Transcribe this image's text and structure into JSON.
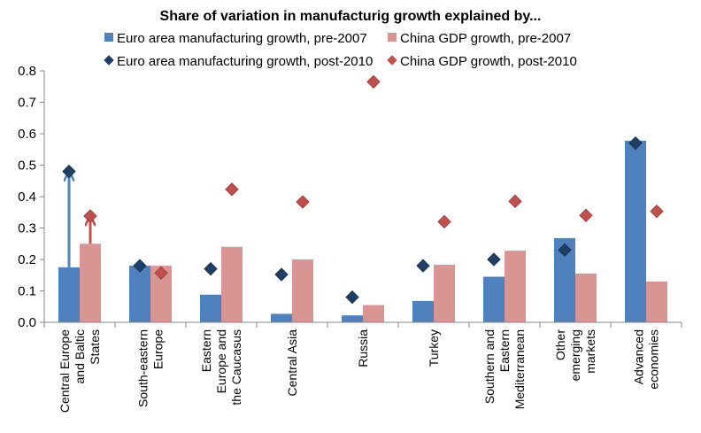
{
  "chart_data": {
    "type": "bar",
    "title": "Share of variation in manufacturig growth explained by...",
    "xlabel": "",
    "ylabel": "",
    "ylim": [
      0,
      0.8
    ],
    "yticks": [
      "0.0",
      "0.1",
      "0.2",
      "0.3",
      "0.4",
      "0.5",
      "0.6",
      "0.7",
      "0.8"
    ],
    "grid": false,
    "legend_position": "top",
    "categories": [
      [
        "Central Europe",
        "and Baltic",
        "States"
      ],
      [
        "South-eastern",
        "Europe"
      ],
      [
        "Eastern",
        "Europe and",
        "the Caucasus"
      ],
      [
        "Central Asia"
      ],
      [
        "Russia"
      ],
      [
        "Turkey"
      ],
      [
        "Southern and",
        "Eastern",
        "Mediterranean"
      ],
      [
        "Other",
        "emerging",
        "markets"
      ],
      [
        "Advanced",
        "economies"
      ]
    ],
    "series": [
      {
        "name": "Euro area manufacturing growth, pre-2007",
        "kind": "bar",
        "color": "#4f81bd",
        "values": [
          0.175,
          0.18,
          0.088,
          0.027,
          0.022,
          0.068,
          0.145,
          0.268,
          0.578
        ]
      },
      {
        "name": "China GDP growth, pre-2007",
        "kind": "bar",
        "color": "#d99594",
        "values": [
          0.25,
          0.18,
          0.24,
          0.2,
          0.055,
          0.183,
          0.228,
          0.155,
          0.13
        ]
      },
      {
        "name": "Euro area manufacturing growth, post-2010",
        "kind": "marker",
        "color": "#1f3f66",
        "values": [
          0.48,
          0.18,
          0.17,
          0.152,
          0.08,
          0.18,
          0.2,
          0.23,
          0.57
        ]
      },
      {
        "name": "China GDP growth, post-2010",
        "kind": "marker",
        "color": "#c0504d",
        "values": [
          0.338,
          0.157,
          0.423,
          0.383,
          0.765,
          0.32,
          0.385,
          0.34,
          0.353
        ]
      }
    ],
    "annotations": [
      {
        "type": "arrow",
        "category": 0,
        "series": 0,
        "from": 0.175,
        "to": 0.48,
        "color": "#4f81bd"
      },
      {
        "type": "arrow",
        "category": 0,
        "series": 1,
        "from": 0.25,
        "to": 0.338,
        "color": "#c0504d"
      }
    ]
  }
}
